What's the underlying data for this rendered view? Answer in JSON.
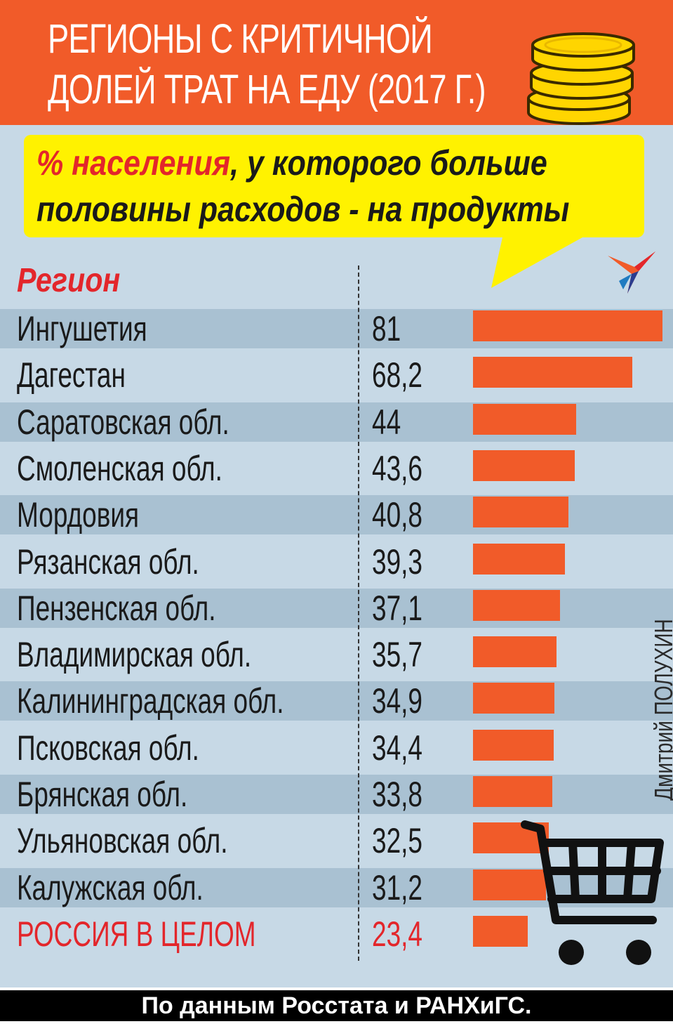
{
  "title": {
    "line1": "РЕГИОНЫ С КРИТИЧНОЙ",
    "line2": "ДОЛЕЙ ТРАТ НА ЕДУ (2017 Г.)"
  },
  "subtitle": {
    "highlight": "% населения",
    "line1_rest": ", у которого больше",
    "line2": "половины расходов - на продукты"
  },
  "column_header": "Регион",
  "author": "Дмитрий ПОЛУХИН",
  "source": "По данным Росстата и РАНХиГС.",
  "icons": [
    "coins-icon",
    "bird-logo-icon",
    "shopping-cart-icon"
  ],
  "colors": {
    "accent": "#f15b29",
    "highlight_text": "#e3262b",
    "callout": "#fff200",
    "panel": "#c7d9e6",
    "band": "#a9c1d2"
  },
  "chart_data": {
    "type": "bar",
    "orientation": "horizontal",
    "title": "РЕГИОНЫ С КРИТИЧНОЙ ДОЛЕЙ ТРАТ НА ЕДУ (2017 Г.)",
    "subtitle": "% населения, у которого больше половины расходов - на продукты",
    "categories": [
      "Ингушетия",
      "Дагестан",
      "Саратовская обл.",
      "Смоленская обл.",
      "Мордовия",
      "Рязанская обл.",
      "Пензенская обл.",
      "Владимирская обл.",
      "Калининградская обл.",
      "Псковская обл.",
      "Брянская обл.",
      "Ульяновская обл.",
      "Калужская обл.",
      "РОССИЯ В ЦЕЛОМ"
    ],
    "values": [
      81,
      68.2,
      44,
      43.6,
      40.8,
      39.3,
      37.1,
      35.7,
      34.9,
      34.4,
      33.8,
      32.5,
      31.2,
      23.4
    ],
    "value_labels": [
      "81",
      "68,2",
      "44",
      "43,6",
      "40,8",
      "39,3",
      "37,1",
      "35,7",
      "34,9",
      "34,4",
      "33,8",
      "32,5",
      "31,2",
      "23,4"
    ],
    "highlighted_category": "РОССИЯ В ЦЕЛОМ",
    "xlim": [
      0,
      81
    ],
    "grid": false,
    "legend": "none"
  }
}
